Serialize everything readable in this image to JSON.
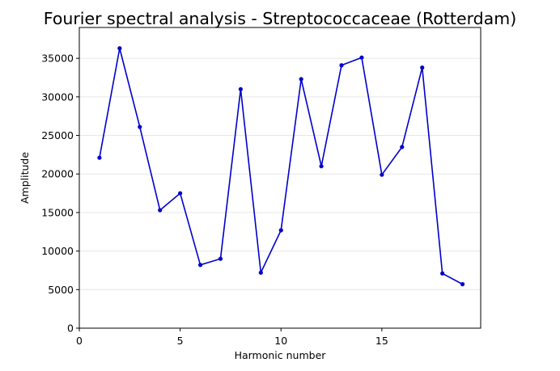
{
  "chart_data": {
    "type": "line",
    "title": "Fourier spectral analysis - Streptococcaceae (Rotterdam)",
    "xlabel": "Harmonic number",
    "ylabel": "Amplitude",
    "xlim": [
      0,
      19.9
    ],
    "ylim": [
      0,
      39000
    ],
    "xticks": [
      0,
      5,
      10,
      15
    ],
    "yticks": [
      0,
      5000,
      10000,
      15000,
      20000,
      25000,
      30000,
      35000
    ],
    "grid": "horizontal",
    "legend": "none",
    "series": [
      {
        "color": "#0000cc",
        "marker": "dot",
        "x": [
          1,
          2,
          3,
          4,
          5,
          6,
          7,
          8,
          9,
          10,
          11,
          12,
          13,
          14,
          15,
          16,
          17,
          18,
          19
        ],
        "y": [
          22100,
          36300,
          26100,
          15300,
          17500,
          8200,
          9000,
          31000,
          7200,
          12700,
          32300,
          21000,
          34100,
          35100,
          19900,
          23500,
          33800,
          7100,
          5700
        ]
      }
    ]
  }
}
